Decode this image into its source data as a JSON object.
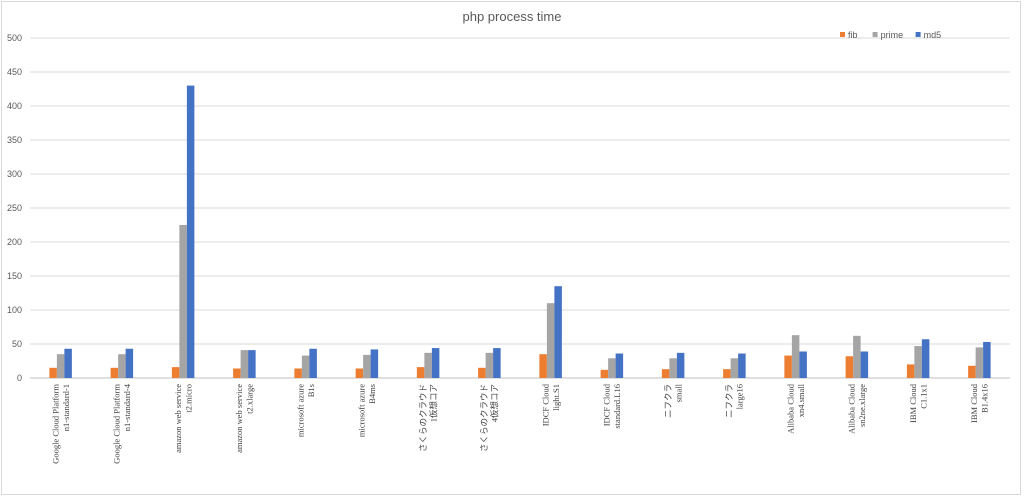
{
  "chart_data": {
    "type": "bar",
    "title": "php process time",
    "xlabel": "",
    "ylabel": "",
    "ylim": [
      0,
      500
    ],
    "yticks": [
      0,
      50,
      100,
      150,
      200,
      250,
      300,
      350,
      400,
      450,
      500
    ],
    "grid": true,
    "legend_position": "top-right",
    "categories": [
      [
        "Google Cloud Platform",
        "n1-standard-1"
      ],
      [
        "Google Cloud Platform",
        "n1-standard-4"
      ],
      [
        "amazon web service",
        "t2.micro"
      ],
      [
        "amazon web service",
        "t2.xlarge"
      ],
      [
        "microsoft azure",
        "B1s"
      ],
      [
        "microsoft azure",
        "B4ms"
      ],
      [
        "さくらのクラウド",
        "1仮想コア"
      ],
      [
        "さくらのクラウド",
        "4仮想コア"
      ],
      [
        "IDCF Cloud",
        "light.S1"
      ],
      [
        "IDCF Cloud",
        "standard.L16"
      ],
      [
        "ニフクラ",
        "small"
      ],
      [
        "ニフクラ",
        "large16"
      ],
      [
        "Alibaba Cloud",
        "xn4.small"
      ],
      [
        "Alibaba Cloud",
        "sn2ne.xlarge"
      ],
      [
        "IBM Cloud",
        "C1.1x1"
      ],
      [
        "IBM Cloud",
        "B1.4x16"
      ]
    ],
    "series": [
      {
        "name": "fib",
        "color": "#ed7d31",
        "values": [
          15,
          15,
          16,
          14,
          14,
          14,
          16,
          15,
          35,
          12,
          13,
          13,
          33,
          32,
          20,
          18
        ]
      },
      {
        "name": "prime",
        "color": "#a5a5a5",
        "values": [
          35,
          35,
          225,
          41,
          33,
          34,
          37,
          37,
          110,
          29,
          29,
          29,
          63,
          62,
          47,
          45
        ]
      },
      {
        "name": "md5",
        "color": "#4472c4",
        "values": [
          43,
          43,
          430,
          41,
          43,
          42,
          44,
          44,
          135,
          36,
          37,
          36,
          39,
          39,
          57,
          53
        ]
      }
    ]
  }
}
